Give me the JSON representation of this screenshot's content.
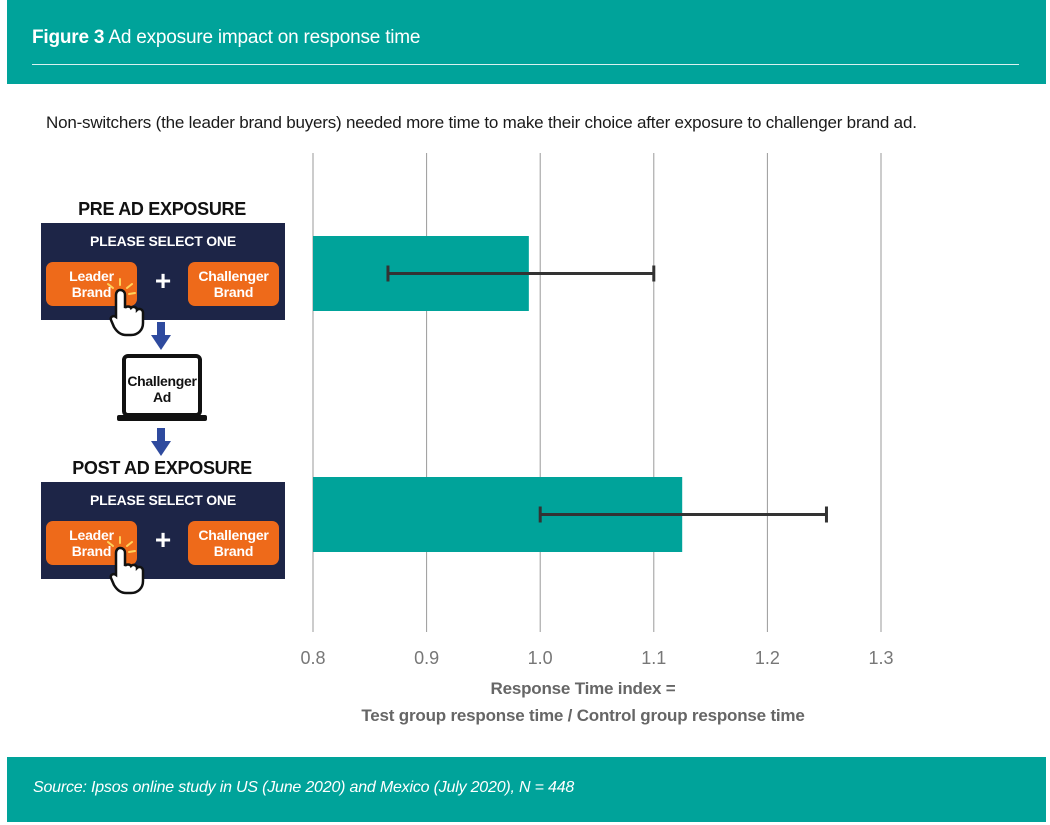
{
  "header": {
    "figure_label": "Figure 3",
    "title": "Ad exposure impact on response time"
  },
  "subtitle": "Non-switchers (the leader brand buyers) needed more time to make their choice after exposure to challenger brand ad.",
  "illustration": {
    "pre_label": "PRE AD EXPOSURE",
    "post_label": "POST AD EXPOSURE",
    "select_title": "PLEASE SELECT ONE",
    "leader_label": "Leader Brand",
    "challenger_label": "Challenger Brand",
    "plus": "+",
    "ad_label": "Challenger Ad",
    "icons": [
      "hand-pointer-icon",
      "arrow-down-icon",
      "laptop-icon",
      "plus-icon"
    ],
    "colors": {
      "box": "#1d2547",
      "button": "#ee6a1a",
      "arrow": "#2e4a9e"
    }
  },
  "chart_data": {
    "type": "bar",
    "orientation": "horizontal",
    "categories": [
      "PRE AD EXPOSURE",
      "POST AD EXPOSURE"
    ],
    "values": [
      0.99,
      1.125
    ],
    "error_bars": [
      {
        "low": 0.866,
        "high": 1.1
      },
      {
        "low": 1.0,
        "high": 1.252
      }
    ],
    "xlim": [
      0.8,
      1.3
    ],
    "xticks": [
      0.8,
      0.9,
      1.0,
      1.1,
      1.2,
      1.3
    ],
    "xtick_labels": [
      "0.8",
      "0.9",
      "1.0",
      "1.1",
      "1.2",
      "1.3"
    ],
    "xlabel_line1": "Response Time index =",
    "xlabel_line2": "Test group response time / Control group response time",
    "grid": "vertical",
    "bar_color": "#00a39a",
    "error_color": "#333333"
  },
  "footer": {
    "source": "Source: Ipsos online study in US (June 2020) and Mexico (July 2020), N = 448"
  }
}
